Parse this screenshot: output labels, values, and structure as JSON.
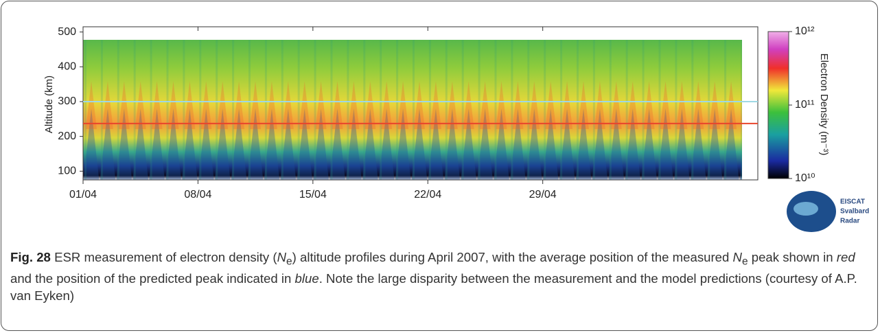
{
  "chart_data": {
    "type": "heatmap",
    "ylabel": "Altitude (km)",
    "ylim": [
      75,
      515
    ],
    "yticks": [
      100,
      200,
      300,
      400,
      500
    ],
    "xlim": [
      1,
      42.1
    ],
    "xticks": [
      {
        "value": 1,
        "label": "01/04"
      },
      {
        "value": 8,
        "label": "08/04"
      },
      {
        "value": 15,
        "label": "15/04"
      },
      {
        "value": 22,
        "label": "22/04"
      },
      {
        "value": 29,
        "label": "29/04"
      }
    ],
    "colorbar": {
      "label": "Electron Density (m⁻³)",
      "log": true,
      "lim": [
        10000000000,
        1000000000000
      ],
      "ticks": [
        {
          "value": 10000000000,
          "label": "10¹⁰"
        },
        {
          "value": 100000000000,
          "label": "10¹¹"
        },
        {
          "value": 1000000000000,
          "label": "10¹²"
        }
      ]
    },
    "hlines": [
      {
        "value": 237,
        "color": "#e8452c"
      },
      {
        "value": 300,
        "color": "#9fd8e4"
      }
    ],
    "logo": [
      "EISCAT",
      "Svalbard",
      "Radar"
    ]
  },
  "caption": {
    "label": "Fig. 28",
    "parts": [
      " ESR measurement of electron density (",
      "N",
      "e",
      ") altitude profiles during April 2007, with the average position of the measured ",
      "N",
      "e",
      " peak shown in ",
      "red",
      " and the position of the predicted peak indicated in ",
      "blue",
      ". Note the large disparity between the measurement and the model predictions (courtesy of A.P. van Eyken)"
    ]
  }
}
